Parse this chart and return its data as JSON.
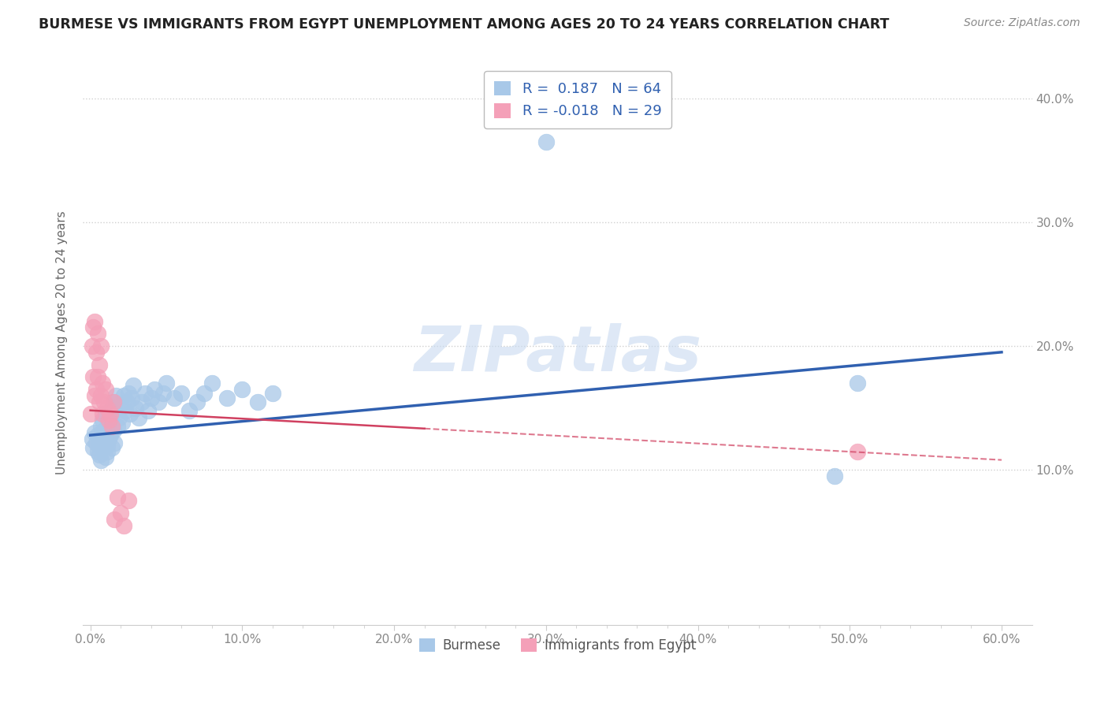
{
  "title": "BURMESE VS IMMIGRANTS FROM EGYPT UNEMPLOYMENT AMONG AGES 20 TO 24 YEARS CORRELATION CHART",
  "source": "Source: ZipAtlas.com",
  "ylabel": "Unemployment Among Ages 20 to 24 years",
  "xlabel_legend1": "Burmese",
  "xlabel_legend2": "Immigrants from Egypt",
  "R1": 0.187,
  "N1": 64,
  "R2": -0.018,
  "N2": 29,
  "xlim": [
    -0.005,
    0.62
  ],
  "ylim": [
    -0.025,
    0.43
  ],
  "xticks": [
    0.0,
    0.1,
    0.2,
    0.3,
    0.4,
    0.5,
    0.6
  ],
  "yticks": [
    0.1,
    0.2,
    0.3,
    0.4
  ],
  "color_blue": "#a8c8e8",
  "color_pink": "#f4a0b8",
  "color_blue_line": "#3060b0",
  "color_pink_line": "#d04060",
  "watermark_color": "#c8daf0",
  "background_color": "#ffffff",
  "grid_color": "#d0d0d0",
  "tick_color": "#888888",
  "title_color": "#222222",
  "source_color": "#888888",
  "burmese_x": [
    0.001,
    0.002,
    0.003,
    0.004,
    0.005,
    0.005,
    0.006,
    0.006,
    0.007,
    0.007,
    0.008,
    0.008,
    0.009,
    0.009,
    0.01,
    0.01,
    0.011,
    0.011,
    0.012,
    0.012,
    0.013,
    0.013,
    0.014,
    0.014,
    0.015,
    0.015,
    0.016,
    0.016,
    0.017,
    0.018,
    0.019,
    0.02,
    0.021,
    0.022,
    0.023,
    0.024,
    0.025,
    0.026,
    0.027,
    0.028,
    0.03,
    0.032,
    0.034,
    0.036,
    0.038,
    0.04,
    0.042,
    0.045,
    0.048,
    0.05,
    0.055,
    0.06,
    0.065,
    0.07,
    0.075,
    0.08,
    0.09,
    0.1,
    0.11,
    0.12,
    0.27,
    0.3,
    0.49,
    0.505
  ],
  "burmese_y": [
    0.125,
    0.118,
    0.13,
    0.122,
    0.115,
    0.128,
    0.12,
    0.112,
    0.135,
    0.108,
    0.14,
    0.125,
    0.118,
    0.132,
    0.11,
    0.145,
    0.12,
    0.115,
    0.138,
    0.125,
    0.142,
    0.128,
    0.15,
    0.118,
    0.155,
    0.132,
    0.148,
    0.122,
    0.16,
    0.135,
    0.142,
    0.152,
    0.138,
    0.16,
    0.148,
    0.155,
    0.162,
    0.145,
    0.158,
    0.168,
    0.15,
    0.142,
    0.155,
    0.162,
    0.148,
    0.158,
    0.165,
    0.155,
    0.162,
    0.17,
    0.158,
    0.162,
    0.148,
    0.155,
    0.162,
    0.17,
    0.158,
    0.165,
    0.155,
    0.162,
    0.39,
    0.365,
    0.095,
    0.17
  ],
  "egypt_x": [
    0.0,
    0.001,
    0.002,
    0.002,
    0.003,
    0.003,
    0.004,
    0.004,
    0.005,
    0.005,
    0.006,
    0.006,
    0.007,
    0.007,
    0.008,
    0.008,
    0.009,
    0.01,
    0.011,
    0.012,
    0.013,
    0.014,
    0.015,
    0.016,
    0.018,
    0.02,
    0.022,
    0.025,
    0.505
  ],
  "egypt_y": [
    0.145,
    0.2,
    0.215,
    0.175,
    0.16,
    0.22,
    0.165,
    0.195,
    0.175,
    0.21,
    0.155,
    0.185,
    0.16,
    0.2,
    0.17,
    0.145,
    0.155,
    0.165,
    0.15,
    0.14,
    0.145,
    0.135,
    0.155,
    0.06,
    0.078,
    0.065,
    0.055,
    0.075,
    0.115
  ],
  "blue_line_x": [
    0.0,
    0.6
  ],
  "blue_line_y": [
    0.128,
    0.195
  ],
  "pink_line_x": [
    0.0,
    0.6
  ],
  "pink_line_y": [
    0.148,
    0.108
  ],
  "watermark": "ZIPatlas"
}
